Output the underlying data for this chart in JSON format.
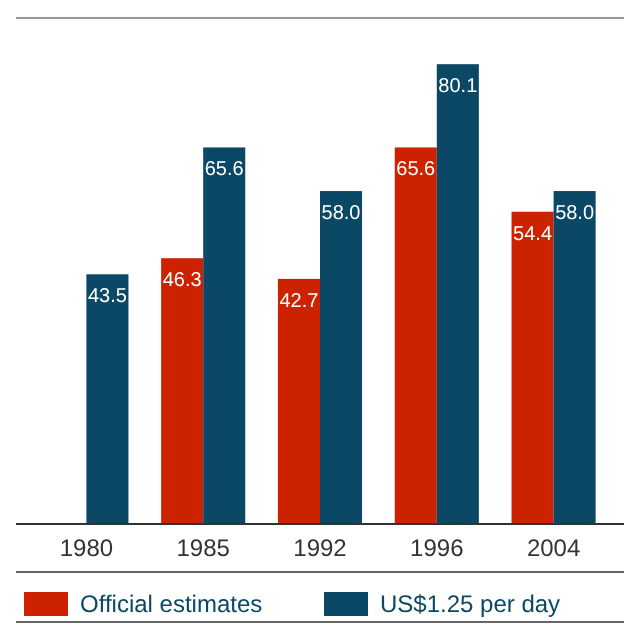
{
  "chart_data": {
    "type": "bar",
    "categories": [
      "1980",
      "1985",
      "1992",
      "1996",
      "2004"
    ],
    "series": [
      {
        "name": "Official estimates",
        "color": "#cc2200",
        "values": [
          null,
          46.3,
          42.7,
          65.6,
          54.4
        ],
        "value_labels": [
          null,
          "46.3",
          "42.7",
          "65.6",
          "54.4"
        ]
      },
      {
        "name": "US$1.25 per day",
        "color": "#0b4866",
        "values": [
          43.5,
          65.6,
          58.0,
          80.1,
          58.0
        ],
        "value_labels": [
          "43.5",
          "65.6",
          "58.0",
          "80.1",
          "58.0"
        ]
      }
    ],
    "legend": "bottom",
    "grid": false
  }
}
